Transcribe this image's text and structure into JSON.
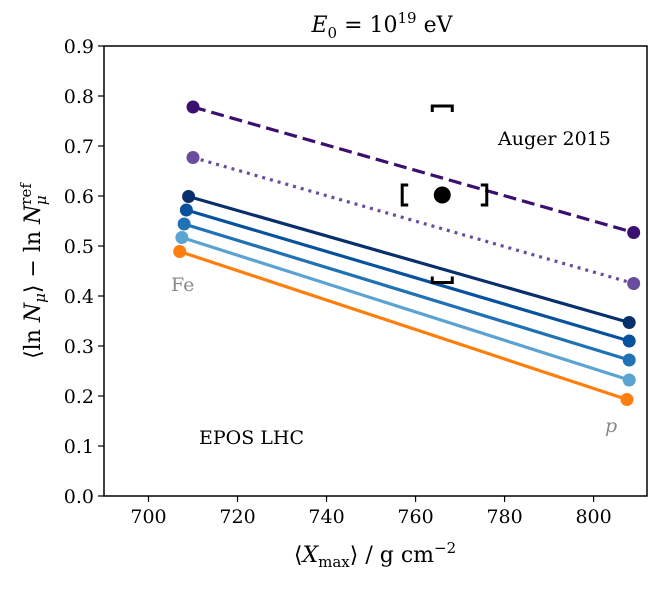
{
  "chart_data": {
    "type": "line",
    "title": "E₀ = 10¹⁹ eV",
    "xlabel": "⟨X_max⟩ / g cm⁻²",
    "ylabel": "⟨ln N_μ⟩ − ln N_μ^ref",
    "xlim": [
      690,
      812
    ],
    "ylim": [
      0.0,
      0.9
    ],
    "xticks": [
      700,
      720,
      740,
      760,
      780,
      800
    ],
    "yticks": [
      0.0,
      0.1,
      0.2,
      0.3,
      0.4,
      0.5,
      0.6,
      0.7,
      0.8,
      0.9
    ],
    "grid": false,
    "series": [
      {
        "x": [
          710,
          809
        ],
        "y": [
          0.778,
          0.527
        ],
        "color": "#3b0f70",
        "style": "dashed"
      },
      {
        "x": [
          710,
          809
        ],
        "y": [
          0.677,
          0.425
        ],
        "color": "#6a4c9c",
        "style": "dotted"
      },
      {
        "x": [
          709,
          808
        ],
        "y": [
          0.599,
          0.347
        ],
        "color": "#08306b",
        "style": "solid"
      },
      {
        "x": [
          708.5,
          808
        ],
        "y": [
          0.572,
          0.31
        ],
        "color": "#08519c",
        "style": "solid"
      },
      {
        "x": [
          708,
          808
        ],
        "y": [
          0.544,
          0.272
        ],
        "color": "#2171b5",
        "style": "solid"
      },
      {
        "x": [
          707.5,
          808
        ],
        "y": [
          0.517,
          0.232
        ],
        "color": "#5ba3d0",
        "style": "solid"
      },
      {
        "x": [
          707,
          807.5
        ],
        "y": [
          0.489,
          0.193
        ],
        "color": "#ff7f0e",
        "style": "solid"
      }
    ],
    "measurement": {
      "x": 766,
      "y": 0.602,
      "sys_x": [
        757,
        776
      ],
      "sys_y": [
        0.427,
        0.78
      ],
      "color": "#000000"
    },
    "annotations": {
      "auger": "Auger 2015",
      "model": "EPOS LHC",
      "fe": "Fe",
      "p": "p"
    }
  }
}
